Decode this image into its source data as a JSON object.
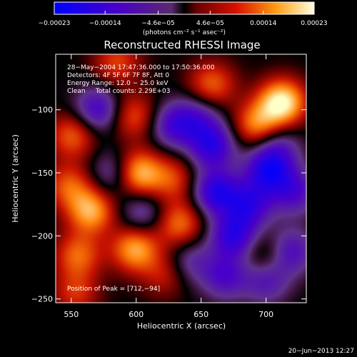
{
  "chart_data": {
    "type": "heatmap",
    "title": "Reconstructed RHESSI Image",
    "xlabel": "Heliocentric X (arcsec)",
    "ylabel": "Heliocentric Y (arcsec)",
    "xlim": [
      538,
      731
    ],
    "ylim": [
      -253,
      -56
    ],
    "x_ticks": [
      550,
      600,
      650,
      700
    ],
    "y_ticks": [
      -100,
      -150,
      -200,
      -250
    ],
    "x_tick_labels": [
      "550",
      "600",
      "650",
      "700"
    ],
    "y_tick_labels": [
      "−100",
      "−150",
      "−200",
      "−250"
    ],
    "colorbar": {
      "range": [
        -0.00023,
        0.00023
      ],
      "ticks": [
        -0.00023,
        -0.00014,
        -4.6e-05,
        4.6e-05,
        0.00014,
        0.00023
      ],
      "tick_labels": [
        "−0.00023",
        "−0.00014",
        "−4.6e−05",
        "4.6e−05",
        "0.00014",
        "0.00023"
      ],
      "unit_label": "(photons cm⁻² s⁻¹ asec⁻²)"
    },
    "annotations": [
      "28−May−2004 17:47:36.000 to 17:50:36.000",
      "Detectors: 4F 5F 6F 7F 8F, Att 0",
      "Energy Range: 12.0 − 25.0 keV",
      "Clean     Total counts: 2.29E+03"
    ],
    "peak_label": "Position of Peak = [712,−94]",
    "peak": [
      712,
      -94
    ],
    "blobs": [
      {
        "x": 712,
        "y": -94,
        "v": 1.0
      },
      {
        "x": 693,
        "y": -112,
        "v": 0.65
      },
      {
        "x": 658,
        "y": -80,
        "v": 0.55
      },
      {
        "x": 601,
        "y": -150,
        "v": 0.85
      },
      {
        "x": 598,
        "y": -105,
        "v": 0.5
      },
      {
        "x": 551,
        "y": -120,
        "v": 0.55
      },
      {
        "x": 585,
        "y": -62,
        "v": 0.45
      },
      {
        "x": 565,
        "y": -180,
        "v": 0.75
      },
      {
        "x": 548,
        "y": -160,
        "v": 0.5
      },
      {
        "x": 599,
        "y": -210,
        "v": 0.75
      },
      {
        "x": 555,
        "y": -215,
        "v": 0.55
      },
      {
        "x": 633,
        "y": -190,
        "v": 0.6
      },
      {
        "x": 628,
        "y": -155,
        "v": 0.45
      },
      {
        "x": 553,
        "y": -245,
        "v": 0.4
      },
      {
        "x": 622,
        "y": -230,
        "v": 0.35
      },
      {
        "x": 700,
        "y": -215,
        "v": 0.35
      },
      {
        "x": 570,
        "y": -100,
        "v": -0.6
      },
      {
        "x": 583,
        "y": -150,
        "v": -0.45
      },
      {
        "x": 628,
        "y": -112,
        "v": -0.55
      },
      {
        "x": 605,
        "y": -182,
        "v": -0.4
      },
      {
        "x": 658,
        "y": -128,
        "v": -0.7
      },
      {
        "x": 661,
        "y": -165,
        "v": -0.75
      },
      {
        "x": 675,
        "y": -200,
        "v": -0.7
      },
      {
        "x": 702,
        "y": -148,
        "v": -0.75
      },
      {
        "x": 687,
        "y": -175,
        "v": -0.6
      },
      {
        "x": 722,
        "y": -165,
        "v": -0.5
      },
      {
        "x": 718,
        "y": -212,
        "v": -0.55
      },
      {
        "x": 668,
        "y": -232,
        "v": -0.5
      },
      {
        "x": 648,
        "y": -105,
        "v": -0.4
      },
      {
        "x": 700,
        "y": -235,
        "v": -0.45
      },
      {
        "x": 640,
        "y": -220,
        "v": -0.35
      },
      {
        "x": 708,
        "y": -128,
        "v": -0.4
      }
    ]
  },
  "footer": {
    "timestamp": "20−Jun−2013 12:27"
  }
}
